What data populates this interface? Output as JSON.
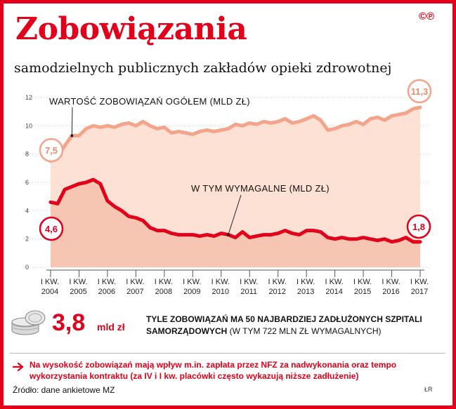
{
  "header": {
    "title": "Zobowiązania",
    "subtitle": "samodzielnych publicznych zakładów opieki zdrowotnej",
    "copyright": "©℗"
  },
  "chart_data": {
    "type": "area",
    "ylim": [
      0,
      12
    ],
    "yticks": [
      "0",
      "2",
      "4",
      "6",
      "8",
      "10",
      "12"
    ],
    "x_labels": [
      {
        "top": "I KW.",
        "bottom": "2004"
      },
      {
        "top": "I KW.",
        "bottom": "2005"
      },
      {
        "top": "I KW.",
        "bottom": "2006"
      },
      {
        "top": "I KW.",
        "bottom": "2007"
      },
      {
        "top": "I KW.",
        "bottom": "2008"
      },
      {
        "top": "I KW.",
        "bottom": "2009"
      },
      {
        "top": "I KW.",
        "bottom": "2010"
      },
      {
        "top": "I KW.",
        "bottom": "2011"
      },
      {
        "top": "I KW.",
        "bottom": "2012"
      },
      {
        "top": "I KW.",
        "bottom": "2013"
      },
      {
        "top": "I KW.",
        "bottom": "2014"
      },
      {
        "top": "I KW.",
        "bottom": "2015"
      },
      {
        "top": "I KW.",
        "bottom": "2016"
      },
      {
        "top": "I KW.",
        "bottom": "2017"
      }
    ],
    "x": [
      2004.0,
      2004.25,
      2004.5,
      2004.75,
      2005.0,
      2005.25,
      2005.5,
      2005.75,
      2006.0,
      2006.25,
      2006.5,
      2006.75,
      2007.0,
      2007.25,
      2007.5,
      2007.75,
      2008.0,
      2008.25,
      2008.5,
      2008.75,
      2009.0,
      2009.25,
      2009.5,
      2009.75,
      2010.0,
      2010.25,
      2010.5,
      2010.75,
      2011.0,
      2011.25,
      2011.5,
      2011.75,
      2012.0,
      2012.25,
      2012.5,
      2012.75,
      2013.0,
      2013.25,
      2013.5,
      2013.75,
      2014.0,
      2014.25,
      2014.5,
      2014.75,
      2015.0,
      2015.25,
      2015.5,
      2015.75,
      2016.0,
      2016.25,
      2016.5,
      2016.75,
      2017.0
    ],
    "series": [
      {
        "name": "WARTOŚĆ ZOBOWIĄZAŃ OGÓŁEM (MLD ZŁ)",
        "color": "#f4a48a",
        "values": [
          7.5,
          7.8,
          8.6,
          9.3,
          9.3,
          9.8,
          10.0,
          9.9,
          10.0,
          9.9,
          10.1,
          10.2,
          10.0,
          10.3,
          10.0,
          9.8,
          9.9,
          9.5,
          9.6,
          9.5,
          9.4,
          9.6,
          9.7,
          9.6,
          9.7,
          9.8,
          10.1,
          10.0,
          10.2,
          10.1,
          10.3,
          10.2,
          10.3,
          10.5,
          10.2,
          10.3,
          10.5,
          10.7,
          10.4,
          9.7,
          9.8,
          10.0,
          10.1,
          10.3,
          10.1,
          10.5,
          10.6,
          10.4,
          10.7,
          10.8,
          10.9,
          11.2,
          11.3
        ]
      },
      {
        "name": "W TYM WYMAGALNE (MLD ZŁ)",
        "color": "#e2001a",
        "values": [
          4.6,
          4.5,
          5.5,
          5.7,
          5.9,
          6.0,
          6.2,
          5.9,
          4.7,
          4.3,
          4.0,
          3.6,
          3.5,
          3.3,
          2.8,
          2.6,
          2.6,
          2.4,
          2.3,
          2.3,
          2.3,
          2.2,
          2.3,
          2.2,
          2.4,
          2.3,
          2.1,
          2.5,
          2.1,
          2.2,
          2.3,
          2.3,
          2.4,
          2.6,
          2.4,
          2.3,
          2.6,
          2.6,
          2.5,
          2.1,
          2.0,
          2.1,
          2.0,
          2.0,
          2.1,
          2.0,
          1.9,
          2.0,
          1.8,
          1.9,
          2.1,
          1.8,
          1.8
        ]
      }
    ],
    "annotations": {
      "total_label": "WARTOŚĆ ZOBOWIĄZAŃ OGÓŁEM (MLD ZŁ)",
      "overdue_label": "W TYM WYMAGALNE (MLD ZŁ)",
      "total_start": "7,5",
      "total_end": "11,3",
      "overdue_start": "4,6",
      "overdue_end": "1,8"
    }
  },
  "highlight": {
    "value": "3,8",
    "unit": "mld zł",
    "text_bold": "TYLE ZOBOWIĄZAŃ MA 50 NAJBARDZIEJ ZADŁUŻONYCH SZPITALI SAMORZĄDOWYCH",
    "text_normal": "(W TYM 722 MLN ZŁ WYMAGALNYCH)"
  },
  "footnote": "Na wysokość zobowiązań mają wpływ m.in. zapłata przez NFZ za nadwykonania oraz tempo wykorzystania kontraktu (za IV i I kw. placówki często wykazują niższe zadłużenie)",
  "source": "Źródło: dane ankietowe MZ",
  "author": "ŁR"
}
